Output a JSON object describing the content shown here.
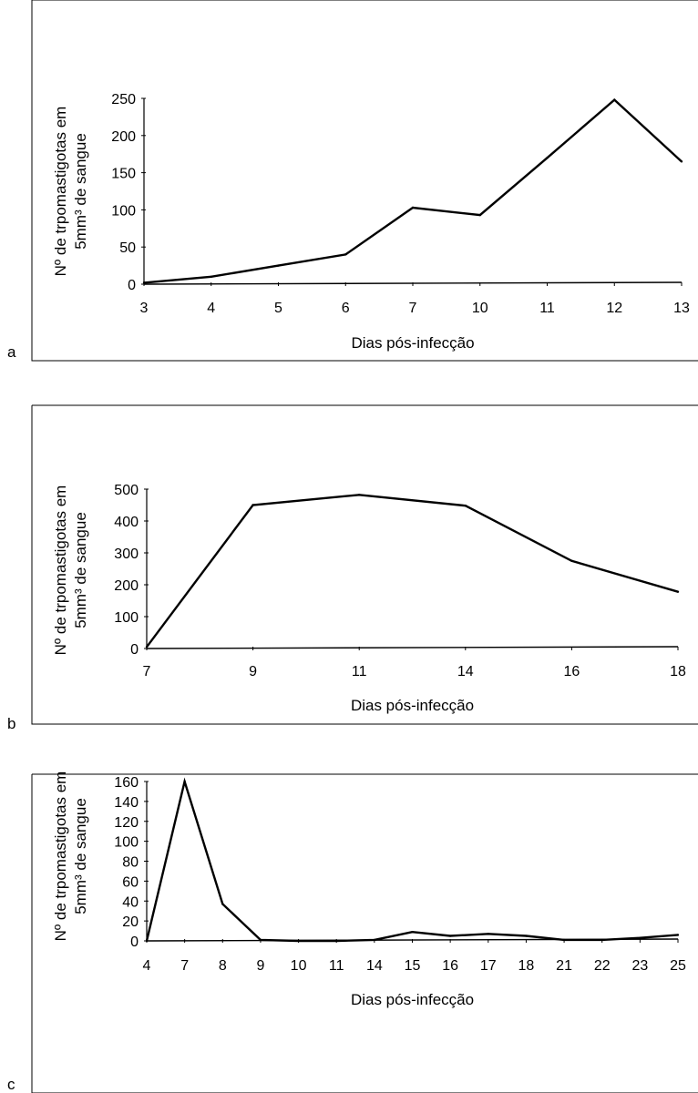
{
  "chart_data": [
    {
      "panel": "a",
      "type": "line",
      "categories": [
        "3",
        "4",
        "5",
        "6",
        "7",
        "10",
        "11",
        "12",
        "13"
      ],
      "values": [
        2,
        10,
        25,
        40,
        103,
        93,
        170,
        248,
        165
      ],
      "ylim": [
        0,
        250
      ],
      "yticks": [
        0,
        50,
        100,
        150,
        200,
        250
      ],
      "xlabel": "Dias pós-infecção",
      "ylabel_line1": "Nº de trpomastigotas em",
      "ylabel_line2": "5mm³ de sangue",
      "grid": false
    },
    {
      "panel": "b",
      "type": "line",
      "categories": [
        "7",
        "9",
        "11",
        "14",
        "16",
        "18"
      ],
      "values": [
        5,
        450,
        482,
        448,
        275,
        178
      ],
      "ylim": [
        0,
        500
      ],
      "yticks": [
        0,
        100,
        200,
        300,
        400,
        500
      ],
      "xlabel": "Dias pós-infecção",
      "ylabel_line1": "Nº de trpomastigotas em",
      "ylabel_line2": "5mm³ de sangue",
      "grid": false
    },
    {
      "panel": "c",
      "type": "line",
      "categories": [
        "4",
        "7",
        "8",
        "9",
        "10",
        "11",
        "14",
        "15",
        "16",
        "17",
        "18",
        "21",
        "22",
        "23",
        "25"
      ],
      "values": [
        0,
        160,
        37,
        1,
        0,
        0,
        1,
        9,
        5,
        7,
        5,
        1,
        1,
        3,
        6
      ],
      "ylim": [
        0,
        160
      ],
      "yticks": [
        0,
        20,
        40,
        60,
        80,
        100,
        120,
        140,
        160
      ],
      "xlabel": "Dias pós-infecção",
      "ylabel_line1": "Nº de trpomastigotas em",
      "ylabel_line2": "5mm³ de sangue",
      "grid": false
    }
  ]
}
